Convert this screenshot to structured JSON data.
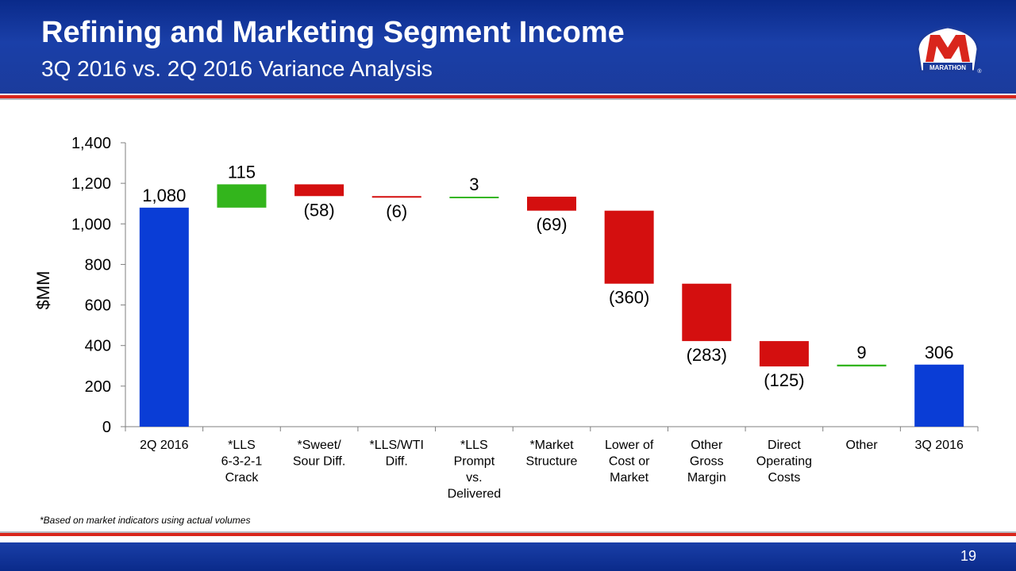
{
  "slide": {
    "title": "Refining and Marketing Segment Income",
    "subtitle": "3Q 2016 vs. 2Q 2016 Variance Analysis",
    "footnote": "*Based on market indicators using actual volumes",
    "page_number": "19",
    "logo_text": "MARATHON",
    "logo_mark": "®",
    "brand_colors": {
      "blue": "#1b3b9c",
      "red": "#d9261c"
    }
  },
  "chart_data": {
    "type": "waterfall",
    "ylabel": "$MM",
    "ylim": [
      0,
      1400
    ],
    "yticks": [
      "0",
      "200",
      "400",
      "600",
      "800",
      "1,000",
      "1,200",
      "1,400"
    ],
    "ytick_values": [
      0,
      200,
      400,
      600,
      800,
      1000,
      1200,
      1400
    ],
    "grid": false,
    "colors": {
      "total": "#0a3dd6",
      "increase": "#33b51c",
      "decrease": "#d40f0f"
    },
    "categories": [
      [
        "2Q 2016"
      ],
      [
        "*LLS",
        "6-3-2-1",
        "Crack"
      ],
      [
        "*Sweet/",
        "Sour Diff."
      ],
      [
        "*LLS/WTI",
        "Diff."
      ],
      [
        "*LLS",
        "Prompt",
        "vs.",
        "Delivered"
      ],
      [
        "*Market",
        "Structure"
      ],
      [
        "Lower of",
        "Cost or",
        "Market"
      ],
      [
        "Other",
        "Gross",
        "Margin"
      ],
      [
        "Direct",
        "Operating",
        "Costs"
      ],
      [
        "Other"
      ],
      [
        "3Q 2016"
      ]
    ],
    "values": [
      1080,
      115,
      -58,
      -6,
      3,
      -69,
      -360,
      -283,
      -125,
      9,
      306
    ],
    "kinds": [
      "total",
      "increase",
      "decrease",
      "decrease",
      "increase",
      "decrease",
      "decrease",
      "decrease",
      "decrease",
      "increase",
      "total"
    ],
    "data_labels": [
      "1,080",
      "115",
      "(58)",
      "(6)",
      "3",
      "(69)",
      "(360)",
      "(283)",
      "(125)",
      "9",
      "306"
    ]
  }
}
